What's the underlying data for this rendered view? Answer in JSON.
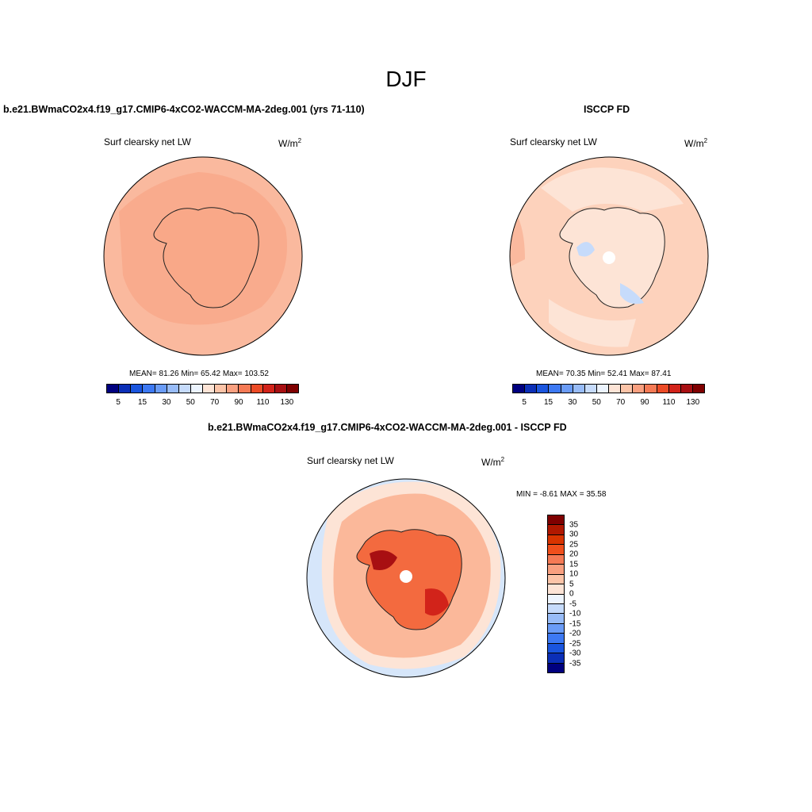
{
  "figure": {
    "season": "DJF"
  },
  "panels": {
    "model": {
      "title": "b.e21.BWmaCO2x4.f19_g17.CMIP6-4xCO2-WACCM-MA-2deg.001 (yrs 71-110)",
      "variable": "Surf clearsky net LW",
      "units": "W/m",
      "units_sup": "2",
      "stats": "MEAN=  81.26  Min=  65.42  Max= 103.52",
      "mean": 81.26,
      "min": 65.42,
      "max": 103.52,
      "fill_color": "#f9a888",
      "ocean_color": "#fab99e",
      "land_color": "#f9a888"
    },
    "obs": {
      "title": "ISCCP FD",
      "variable": "Surf clearsky net LW",
      "units": "W/m",
      "units_sup": "2",
      "stats": "MEAN=  70.35  Min=  52.41  Max=  87.41",
      "mean": 70.35,
      "min": 52.41,
      "max": 87.41,
      "ocean_color": "#fdd2bc",
      "land_color": "#fde4d6"
    },
    "diff": {
      "title": "b.e21.BWmaCO2x4.f19_g17.CMIP6-4xCO2-WACCM-MA-2deg.001 - ISCCP FD",
      "variable": "Surf clearsky net LW",
      "units": "W/m",
      "units_sup": "2",
      "stats": "MIN =  -8.61 MAX =  35.58",
      "min": -8.61,
      "max": 35.58,
      "ocean_color": "#fbb89a",
      "land_color": "#f36a3f",
      "outer_color": "#d6e6fa"
    }
  },
  "colorbars": {
    "abs": {
      "colors": [
        "#00007f",
        "#0b2fb7",
        "#1a55de",
        "#3d79f3",
        "#6a9cf7",
        "#98bcf8",
        "#c6dbfb",
        "#ecf4fe",
        "#fde4d6",
        "#fcc4a8",
        "#f9a080",
        "#f57a55",
        "#ec4b26",
        "#d2231a",
        "#a80f12",
        "#7f0000"
      ],
      "tick_labels": [
        "5",
        "15",
        "30",
        "50",
        "70",
        "90",
        "110",
        "130"
      ]
    },
    "diff": {
      "colors": [
        "#7f0000",
        "#b01800",
        "#d83400",
        "#f04f1c",
        "#f57a55",
        "#f9a080",
        "#fcc4a8",
        "#fde4d6",
        "#eef5fe",
        "#c6dbfb",
        "#98bcf8",
        "#6a9cf7",
        "#3d79f3",
        "#1a55de",
        "#0b2fb7",
        "#00007f"
      ],
      "tick_labels": [
        "35",
        "30",
        "25",
        "20",
        "15",
        "10",
        "5",
        "0",
        "-5",
        "-10",
        "-15",
        "-20",
        "-25",
        "-30",
        "-35"
      ]
    }
  }
}
